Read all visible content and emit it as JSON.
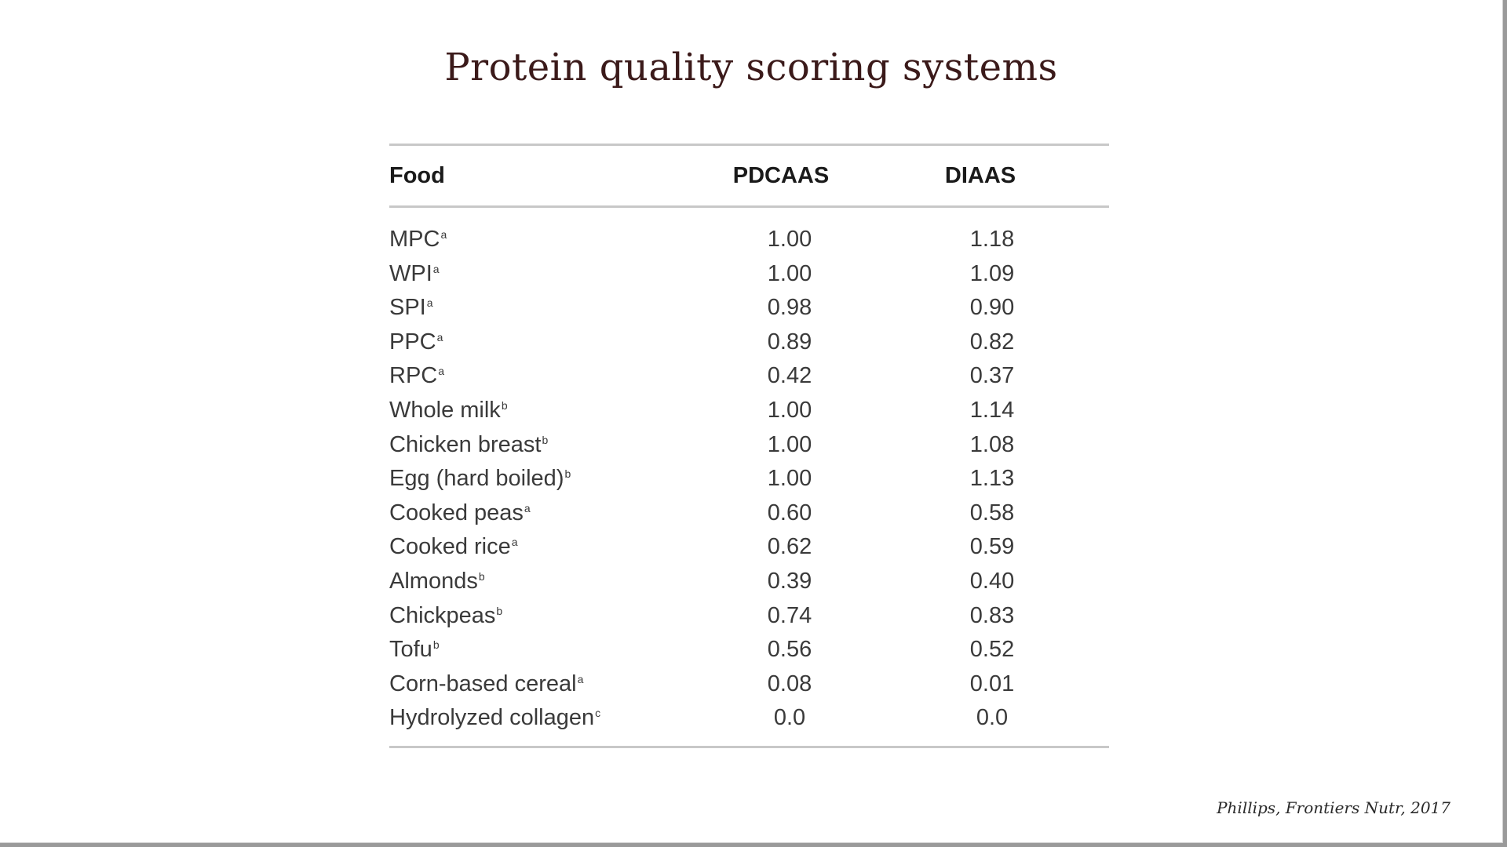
{
  "slide": {
    "title": "Protein quality scoring systems",
    "citation": "Phillips, Frontiers Nutr, 2017"
  },
  "table": {
    "headers": {
      "food": "Food",
      "pdcaas": "PDCAAS",
      "diaas": "DIAAS"
    },
    "rows": [
      {
        "food": "MPC",
        "mark": "a",
        "pdcaas": "1.00",
        "diaas": "1.18"
      },
      {
        "food": "WPI",
        "mark": "a",
        "pdcaas": "1.00",
        "diaas": "1.09"
      },
      {
        "food": "SPI",
        "mark": "a",
        "pdcaas": "0.98",
        "diaas": "0.90"
      },
      {
        "food": "PPC",
        "mark": "a",
        "pdcaas": "0.89",
        "diaas": "0.82"
      },
      {
        "food": "RPC",
        "mark": "a",
        "pdcaas": "0.42",
        "diaas": "0.37"
      },
      {
        "food": "Whole milk",
        "mark": "b",
        "pdcaas": "1.00",
        "diaas": "1.14"
      },
      {
        "food": "Chicken breast",
        "mark": "b",
        "pdcaas": "1.00",
        "diaas": "1.08"
      },
      {
        "food": "Egg (hard boiled)",
        "mark": "b",
        "pdcaas": "1.00",
        "diaas": "1.13"
      },
      {
        "food": "Cooked peas",
        "mark": "a",
        "pdcaas": "0.60",
        "diaas": "0.58"
      },
      {
        "food": "Cooked rice",
        "mark": "a",
        "pdcaas": "0.62",
        "diaas": "0.59"
      },
      {
        "food": "Almonds",
        "mark": "b",
        "pdcaas": "0.39",
        "diaas": "0.40"
      },
      {
        "food": "Chickpeas",
        "mark": "b",
        "pdcaas": "0.74",
        "diaas": "0.83"
      },
      {
        "food": "Tofu",
        "mark": "b",
        "pdcaas": "0.56",
        "diaas": "0.52"
      },
      {
        "food": "Corn-based cereal",
        "mark": "a",
        "pdcaas": "0.08",
        "diaas": "0.01"
      },
      {
        "food": "Hydrolyzed collagen",
        "mark": "c",
        "pdcaas": "0.0",
        "diaas": "0.0"
      }
    ]
  }
}
